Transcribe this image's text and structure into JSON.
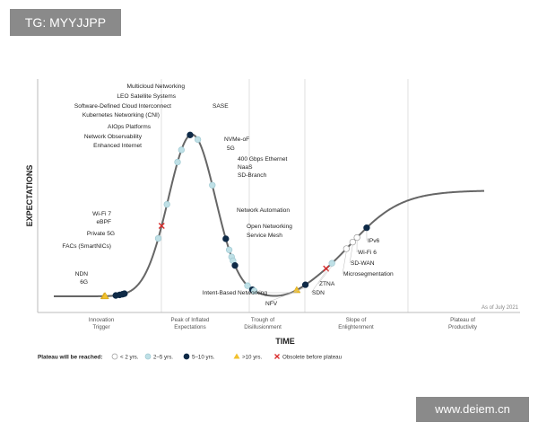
{
  "overlay": {
    "tg_label": "TG: MYYJJPP",
    "website": "www.deiem.cn"
  },
  "chart_data": {
    "type": "scatter",
    "xlabel": "TIME",
    "ylabel": "EXPECTATIONS",
    "as_of": "As of July 2021",
    "phases": [
      {
        "lines": [
          "Innovation",
          "Trigger"
        ]
      },
      {
        "lines": [
          "Peak of Inflated",
          "Expectations"
        ]
      },
      {
        "lines": [
          "Trough of",
          "Disillusionment"
        ]
      },
      {
        "lines": [
          "Slope of",
          "Enlightenment"
        ]
      },
      {
        "lines": [
          "Plateau of",
          "Productivity"
        ]
      }
    ],
    "legend": {
      "title": "Plateau will be reached:",
      "items": [
        {
          "key": "lt2",
          "label": "< 2 yrs."
        },
        {
          "key": "y2to5",
          "label": "2–5 yrs."
        },
        {
          "key": "y5to10",
          "label": "5–10 yrs."
        },
        {
          "key": "gt10",
          "label": ">10 yrs."
        },
        {
          "key": "obsolete",
          "label": "Obsolete before plateau"
        }
      ]
    },
    "colors": {
      "lt2": "#ffffff",
      "y2to5": "#bfe0e6",
      "y5to10": "#0f2a47",
      "gt10": "#f2c12e",
      "obsolete": "#d92b2b",
      "curve": "#666666",
      "divider": "#d8d8d8"
    },
    "technologies": [
      {
        "name": "NDN",
        "t": 0.138,
        "cat": "gt10"
      },
      {
        "name": "6G",
        "t": 0.14,
        "cat": "gt10"
      },
      {
        "name": "FACs (SmartNICs)",
        "t": 0.162,
        "cat": "y5to10"
      },
      {
        "name": "Private 5G",
        "t": 0.17,
        "cat": "y5to10"
      },
      {
        "name": "eBPF",
        "t": 0.176,
        "cat": "y5to10"
      },
      {
        "name": "Wi-Fi 7",
        "t": 0.18,
        "cat": "y5to10"
      },
      {
        "name": "Enhanced Internet",
        "t": 0.25,
        "cat": "y2to5"
      },
      {
        "name": "Network Observability",
        "t": 0.257,
        "cat": "obsolete"
      },
      {
        "name": "AIOps Platforms",
        "t": 0.268,
        "cat": "y2to5"
      },
      {
        "name": "Kubernetes Networking (CNI)",
        "t": 0.29,
        "cat": "y2to5"
      },
      {
        "name": "Software-Defined Cloud Interconnect",
        "t": 0.298,
        "cat": "y2to5"
      },
      {
        "name": "LEO Satellite Systems",
        "t": 0.316,
        "cat": "y5to10"
      },
      {
        "name": "Multicloud Networking",
        "t": 0.332,
        "cat": "y2to5"
      },
      {
        "name": "SASE",
        "t": 0.362,
        "cat": "y2to5"
      },
      {
        "name": "NVMe-oF",
        "t": 0.39,
        "cat": "y5to10"
      },
      {
        "name": "5G",
        "t": 0.397,
        "cat": "y2to5"
      },
      {
        "name": "400 Gbps Ethernet",
        "t": 0.402,
        "cat": "y2to5"
      },
      {
        "name": "NaaS",
        "t": 0.405,
        "cat": "y2to5"
      },
      {
        "name": "SD-Branch",
        "t": 0.409,
        "cat": "y5to10"
      },
      {
        "name": "Network Automation",
        "t": 0.435,
        "cat": "y2to5"
      },
      {
        "name": "Open Networking",
        "t": 0.445,
        "cat": "y5to10"
      },
      {
        "name": "Service Mesh",
        "t": 0.449,
        "cat": "y2to5"
      },
      {
        "name": "Intent-Based Networking",
        "t": 0.537,
        "cat": "gt10"
      },
      {
        "name": "NFV",
        "t": 0.555,
        "cat": "y5to10"
      },
      {
        "name": "SDN",
        "t": 0.598,
        "cat": "obsolete"
      },
      {
        "name": "ZTNA",
        "t": 0.61,
        "cat": "y2to5"
      },
      {
        "name": "Microsegmentation",
        "t": 0.64,
        "cat": "lt2"
      },
      {
        "name": "SD-WAN",
        "t": 0.653,
        "cat": "lt2"
      },
      {
        "name": "Wi-Fi 6",
        "t": 0.662,
        "cat": "lt2"
      },
      {
        "name": "IPv6",
        "t": 0.682,
        "cat": "y5to10"
      }
    ]
  }
}
